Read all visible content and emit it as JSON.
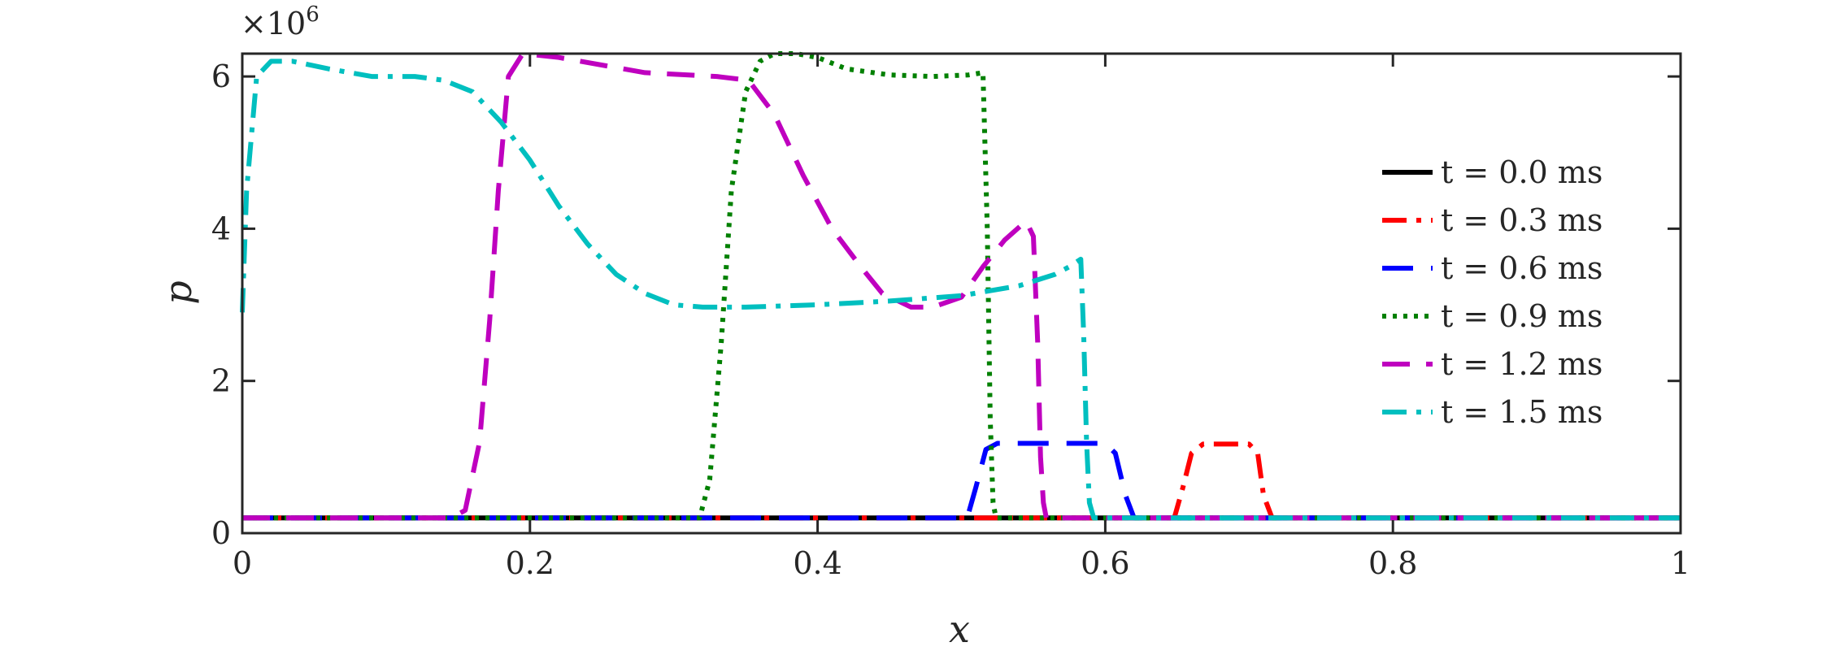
{
  "chart_data": {
    "type": "line",
    "xlabel": "x",
    "ylabel": "p",
    "xlim": [
      0,
      1
    ],
    "ylim": [
      0,
      6.3
    ],
    "y_multiplier_label": "×10",
    "y_multiplier_exponent": "6",
    "x_ticks": [
      0,
      0.2,
      0.4,
      0.6,
      0.8,
      1
    ],
    "x_tick_labels": [
      "0",
      "0.2",
      "0.4",
      "0.6",
      "0.8",
      "1"
    ],
    "y_ticks": [
      0,
      2,
      4,
      6
    ],
    "y_tick_labels": [
      "0",
      "2",
      "4",
      "6"
    ],
    "grid": false,
    "legend_position": "right",
    "series": [
      {
        "name": "t = 0.0 ms",
        "color": "#000000",
        "dash": "solid",
        "x": [
          0,
          1
        ],
        "y": [
          0.2,
          0.2
        ]
      },
      {
        "name": "t = 0.3 ms",
        "color": "#ff0000",
        "dash": "dashdot",
        "x": [
          0,
          0.648,
          0.654,
          0.66,
          0.668,
          0.7,
          0.706,
          0.71,
          0.716,
          1
        ],
        "y": [
          0.2,
          0.2,
          0.6,
          1.05,
          1.17,
          1.17,
          1.05,
          0.5,
          0.2,
          0.2
        ]
      },
      {
        "name": "t = 0.6 ms",
        "color": "#0000ff",
        "dash": "longdash",
        "x": [
          0,
          0.504,
          0.51,
          0.517,
          0.525,
          0.6,
          0.607,
          0.614,
          0.62,
          1
        ],
        "y": [
          0.2,
          0.2,
          0.6,
          1.1,
          1.18,
          1.18,
          1.05,
          0.5,
          0.2,
          0.2
        ]
      },
      {
        "name": "t = 0.9 ms",
        "color": "#008000",
        "dash": "dotted",
        "x": [
          0,
          0.318,
          0.325,
          0.333,
          0.34,
          0.35,
          0.36,
          0.37,
          0.385,
          0.4,
          0.42,
          0.45,
          0.48,
          0.505,
          0.515,
          0.518,
          0.52,
          0.522,
          0.524,
          1
        ],
        "y": [
          0.2,
          0.2,
          0.7,
          2.5,
          4.5,
          5.8,
          6.2,
          6.3,
          6.3,
          6.25,
          6.1,
          6.02,
          6.0,
          6.02,
          6.05,
          4.0,
          1.5,
          0.4,
          0.2,
          0.2
        ]
      },
      {
        "name": "t = 1.2 ms",
        "color": "#bf00bf",
        "dash": "dashed",
        "x": [
          0,
          0.145,
          0.155,
          0.165,
          0.172,
          0.178,
          0.185,
          0.195,
          0.22,
          0.28,
          0.33,
          0.352,
          0.37,
          0.39,
          0.41,
          0.43,
          0.445,
          0.465,
          0.48,
          0.5,
          0.515,
          0.53,
          0.545,
          0.55,
          0.553,
          0.555,
          0.557,
          0.559,
          1
        ],
        "y": [
          0.2,
          0.2,
          0.3,
          1.2,
          2.8,
          4.5,
          6.0,
          6.3,
          6.25,
          6.05,
          6.0,
          5.95,
          5.5,
          4.7,
          4.0,
          3.5,
          3.15,
          2.97,
          2.97,
          3.1,
          3.5,
          3.85,
          4.1,
          3.9,
          2.5,
          1.0,
          0.4,
          0.2,
          0.2
        ]
      },
      {
        "name": "t = 1.5 ms",
        "color": "#00bfbf",
        "dash": "dashdot",
        "x": [
          0,
          0.003,
          0.01,
          0.02,
          0.035,
          0.06,
          0.09,
          0.12,
          0.14,
          0.16,
          0.18,
          0.2,
          0.22,
          0.24,
          0.26,
          0.28,
          0.3,
          0.32,
          0.35,
          0.4,
          0.45,
          0.5,
          0.54,
          0.565,
          0.575,
          0.583,
          0.585,
          0.587,
          0.589,
          0.592,
          1
        ],
        "y": [
          2.9,
          4.5,
          6.0,
          6.2,
          6.2,
          6.1,
          6.0,
          6.0,
          5.95,
          5.8,
          5.4,
          4.9,
          4.3,
          3.8,
          3.4,
          3.15,
          3.0,
          2.97,
          2.97,
          3.0,
          3.05,
          3.12,
          3.25,
          3.4,
          3.5,
          3.6,
          2.6,
          1.2,
          0.4,
          0.2,
          0.2
        ]
      }
    ]
  }
}
